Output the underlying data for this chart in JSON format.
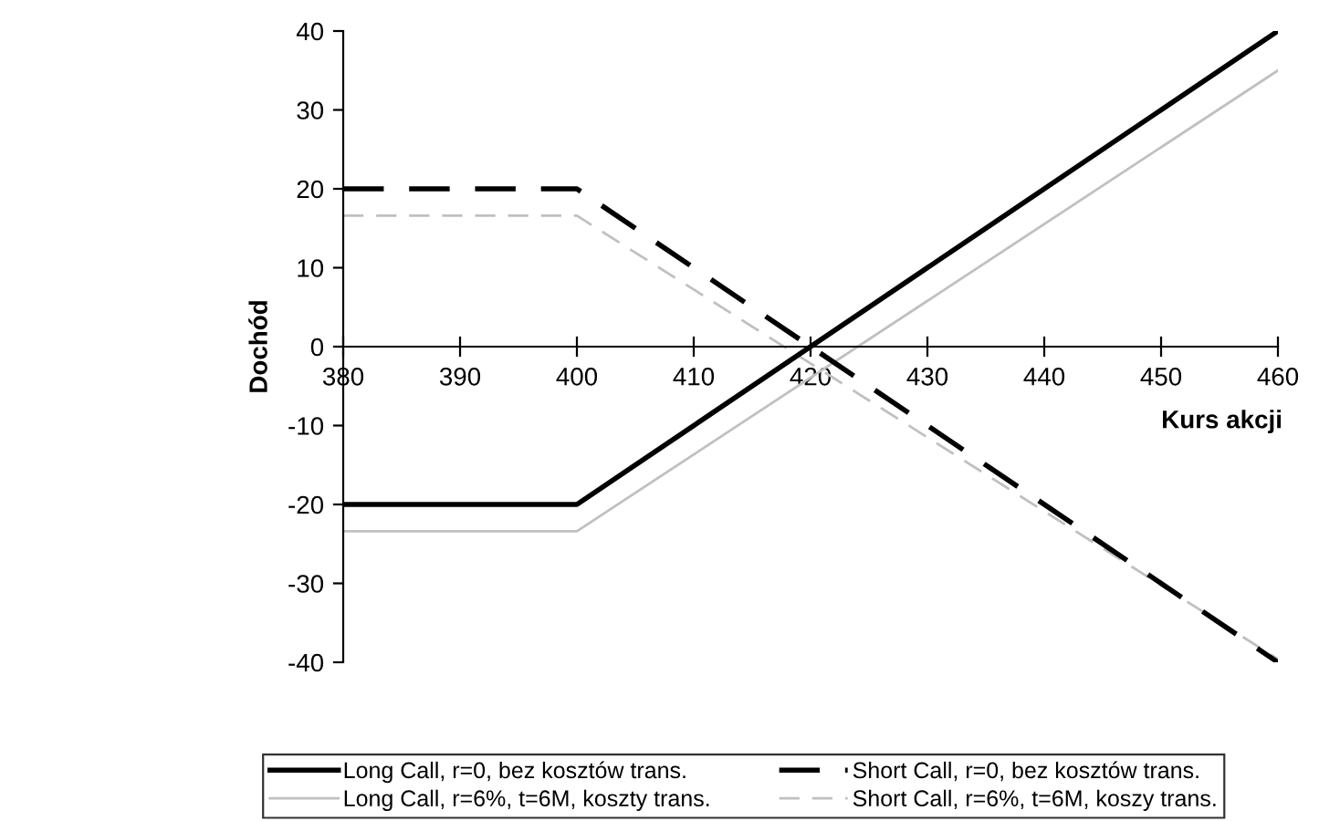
{
  "chart_data": {
    "type": "line",
    "xlabel": "Kurs akcji",
    "ylabel": "Dochód",
    "xlim": [
      380,
      460
    ],
    "xticks": [
      380,
      390,
      400,
      410,
      420,
      430,
      440,
      450,
      460
    ],
    "ylim": [
      -40,
      40
    ],
    "yticks": [
      -40,
      -30,
      -20,
      -10,
      0,
      10,
      20,
      30,
      40
    ],
    "grid": false,
    "legend": "bottom",
    "marker": "none",
    "series": [
      {
        "name": "Long Call, r=0, bez kosztów trans.",
        "color": "#000000",
        "line_style": "solid",
        "x": [
          380,
          400,
          460
        ],
        "values": [
          -20,
          -20,
          40
        ]
      },
      {
        "name": "Long Call, r=6%, t=6M, koszty trans.",
        "color": "#c0c0c0",
        "line_style": "solid",
        "x": [
          380,
          400,
          460
        ],
        "values": [
          -23.4,
          -23.4,
          35
        ]
      },
      {
        "name": "Short Call, r=0, bez kosztów trans.",
        "color": "#000000",
        "line_style": "dashed",
        "x": [
          380,
          400,
          460
        ],
        "values": [
          20,
          20,
          -40
        ]
      },
      {
        "name": "Short Call, r=6%, t=6M, koszy trans.",
        "color": "#c0c0c0",
        "line_style": "dashed",
        "x": [
          380,
          400,
          460
        ],
        "values": [
          16.6,
          16.6,
          -39.6
        ]
      }
    ]
  }
}
